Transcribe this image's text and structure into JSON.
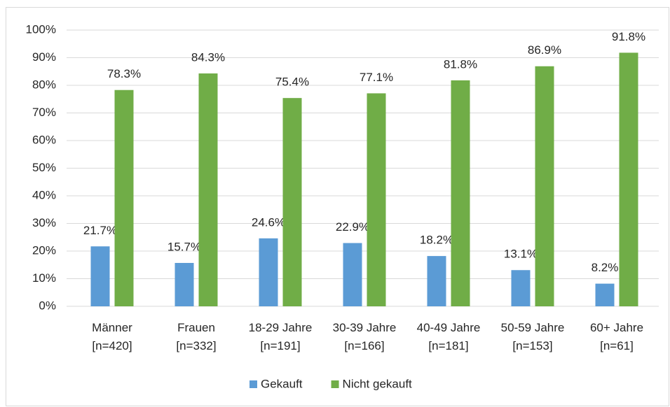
{
  "chart_data": {
    "type": "bar",
    "categories": [
      [
        "Männer",
        "[n=420]"
      ],
      [
        "Frauen",
        "[n=332]"
      ],
      [
        "18-29 Jahre",
        "[n=191]"
      ],
      [
        "30-39 Jahre",
        "[n=166]"
      ],
      [
        "40-49 Jahre",
        "[n=181]"
      ],
      [
        "50-59 Jahre",
        "[n=153]"
      ],
      [
        "60+ Jahre",
        "[n=61]"
      ]
    ],
    "series": [
      {
        "name": "Gekauft",
        "color": "#5b9bd5",
        "values": [
          21.7,
          15.7,
          24.6,
          22.9,
          18.2,
          13.1,
          8.2
        ],
        "value_labels": [
          "21.7%",
          "15.7%",
          "24.6%",
          "22.9%",
          "18.2%",
          "13.1%",
          "8.2%"
        ]
      },
      {
        "name": "Nicht gekauft",
        "color": "#70ad47",
        "values": [
          78.3,
          84.3,
          75.4,
          77.1,
          81.8,
          86.9,
          91.8
        ],
        "value_labels": [
          "78.3%",
          "84.3%",
          "75.4%",
          "77.1%",
          "81.8%",
          "86.9%",
          "91.8%"
        ]
      }
    ],
    "ylim": [
      0,
      100
    ],
    "yticks": [
      {
        "value": 0,
        "label": "0%"
      },
      {
        "value": 10,
        "label": "10%"
      },
      {
        "value": 20,
        "label": "20%"
      },
      {
        "value": 30,
        "label": "30%"
      },
      {
        "value": 40,
        "label": "40%"
      },
      {
        "value": 50,
        "label": "50%"
      },
      {
        "value": 60,
        "label": "60%"
      },
      {
        "value": 70,
        "label": "70%"
      },
      {
        "value": 80,
        "label": "80%"
      },
      {
        "value": 90,
        "label": "90%"
      },
      {
        "value": 100,
        "label": "100%"
      }
    ],
    "grid": true,
    "legend": "bottom"
  }
}
